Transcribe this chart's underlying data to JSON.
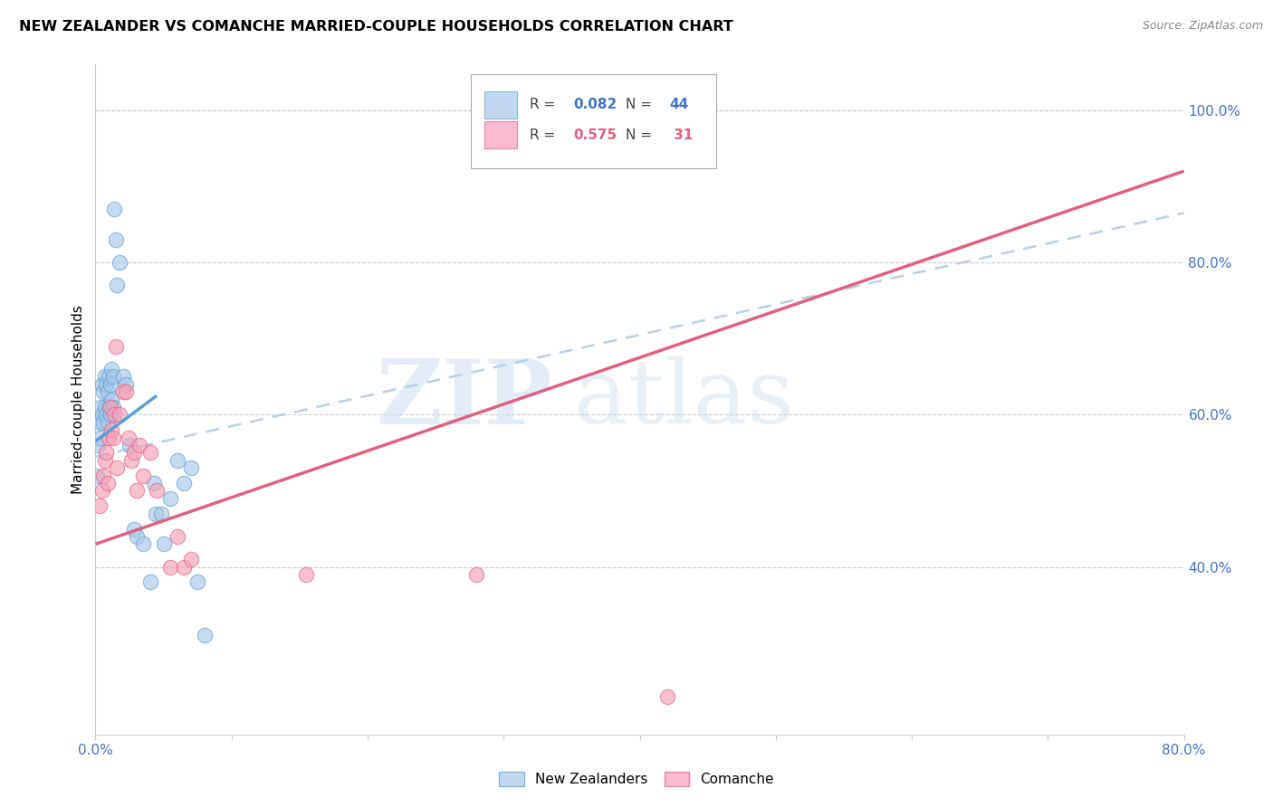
{
  "title": "NEW ZEALANDER VS COMANCHE MARRIED-COUPLE HOUSEHOLDS CORRELATION CHART",
  "source": "Source: ZipAtlas.com",
  "ylabel": "Married-couple Households",
  "xlim": [
    0.0,
    0.8
  ],
  "ylim": [
    0.18,
    1.06
  ],
  "xticks": [
    0.0,
    0.1,
    0.2,
    0.3,
    0.4,
    0.5,
    0.6,
    0.7,
    0.8
  ],
  "xticklabels": [
    "0.0%",
    "",
    "",
    "",
    "",
    "",
    "",
    "",
    "80.0%"
  ],
  "yticks_right": [
    0.4,
    0.6,
    0.8,
    1.0
  ],
  "ytick_labels_right": [
    "40.0%",
    "60.0%",
    "80.0%",
    "100.0%"
  ],
  "blue_fill": "#a8c8e8",
  "blue_edge": "#5a9fd4",
  "pink_fill": "#f4a0b8",
  "pink_edge": "#e06080",
  "blue_line": "#5a9fd4",
  "pink_line": "#e06080",
  "dash_color": "#b0cce8",
  "axis_color": "#4472c4",
  "grid_color": "#cccccc",
  "legend_blue_r": "0.082",
  "legend_blue_n": "44",
  "legend_pink_r": "0.575",
  "legend_pink_n": "31",
  "blue_line_x0": 0.0,
  "blue_line_x1": 0.045,
  "blue_line_y0": 0.565,
  "blue_line_y1": 0.625,
  "pink_line_x0": 0.0,
  "pink_line_x1": 0.8,
  "pink_line_y0": 0.43,
  "pink_line_y1": 0.92,
  "dash_line_x0": 0.0,
  "dash_line_x1": 0.8,
  "dash_line_y0": 0.545,
  "dash_line_y1": 0.865,
  "nz_x": [
    0.001,
    0.002,
    0.003,
    0.004,
    0.004,
    0.005,
    0.005,
    0.006,
    0.006,
    0.007,
    0.007,
    0.008,
    0.008,
    0.009,
    0.009,
    0.01,
    0.01,
    0.011,
    0.011,
    0.012,
    0.012,
    0.013,
    0.013,
    0.014,
    0.015,
    0.016,
    0.018,
    0.02,
    0.022,
    0.025,
    0.028,
    0.03,
    0.035,
    0.04,
    0.043,
    0.044,
    0.048,
    0.05,
    0.055,
    0.06,
    0.065,
    0.07,
    0.075,
    0.08
  ],
  "nz_y": [
    0.52,
    0.56,
    0.57,
    0.59,
    0.61,
    0.6,
    0.64,
    0.59,
    0.63,
    0.61,
    0.65,
    0.6,
    0.64,
    0.59,
    0.63,
    0.61,
    0.65,
    0.6,
    0.64,
    0.62,
    0.66,
    0.61,
    0.65,
    0.87,
    0.83,
    0.77,
    0.8,
    0.65,
    0.64,
    0.56,
    0.45,
    0.44,
    0.43,
    0.38,
    0.51,
    0.47,
    0.47,
    0.43,
    0.49,
    0.54,
    0.51,
    0.53,
    0.38,
    0.31
  ],
  "comanche_x": [
    0.003,
    0.005,
    0.006,
    0.007,
    0.008,
    0.009,
    0.01,
    0.011,
    0.012,
    0.013,
    0.014,
    0.015,
    0.016,
    0.018,
    0.02,
    0.022,
    0.024,
    0.026,
    0.028,
    0.03,
    0.032,
    0.035,
    0.04,
    0.045,
    0.055,
    0.06,
    0.065,
    0.07,
    0.155,
    0.28,
    0.42
  ],
  "comanche_y": [
    0.48,
    0.5,
    0.52,
    0.54,
    0.55,
    0.51,
    0.57,
    0.61,
    0.58,
    0.57,
    0.6,
    0.69,
    0.53,
    0.6,
    0.63,
    0.63,
    0.57,
    0.54,
    0.55,
    0.5,
    0.56,
    0.52,
    0.55,
    0.5,
    0.4,
    0.44,
    0.4,
    0.41,
    0.39,
    0.39,
    0.23
  ]
}
